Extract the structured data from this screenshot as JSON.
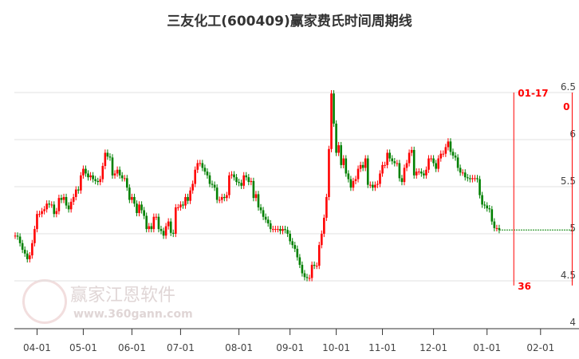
{
  "chart_data": {
    "type": "candlestick",
    "title": "三友化工(600409)赢家费氏时间周期线",
    "ylim": [
      4,
      6.5
    ],
    "yticks": [
      "4",
      "4.5",
      "5",
      "5.5",
      "6",
      "6.5"
    ],
    "grid": true,
    "xticks": [
      {
        "label": "04-01",
        "index": 9
      },
      {
        "label": "05-01",
        "index": 28
      },
      {
        "label": "06-01",
        "index": 48
      },
      {
        "label": "07-01",
        "index": 68
      },
      {
        "label": "08-01",
        "index": 92
      },
      {
        "label": "09-01",
        "index": 113
      },
      {
        "label": "10-01",
        "index": 132
      },
      {
        "label": "11-01",
        "index": 151
      },
      {
        "label": "12-01",
        "index": 172
      },
      {
        "label": "01-01",
        "index": 194
      },
      {
        "label": "02-01",
        "index": 216
      }
    ],
    "closes": [
      4.98,
      4.97,
      4.9,
      4.83,
      4.79,
      4.73,
      4.77,
      4.9,
      5.05,
      5.21,
      5.21,
      5.24,
      5.26,
      5.32,
      5.31,
      5.31,
      5.21,
      5.24,
      5.38,
      5.36,
      5.39,
      5.3,
      5.26,
      5.34,
      5.39,
      5.47,
      5.46,
      5.62,
      5.69,
      5.64,
      5.6,
      5.62,
      5.58,
      5.56,
      5.55,
      5.58,
      5.72,
      5.86,
      5.82,
      5.81,
      5.62,
      5.64,
      5.68,
      5.62,
      5.59,
      5.59,
      5.49,
      5.36,
      5.39,
      5.32,
      5.22,
      5.31,
      5.25,
      5.19,
      5.05,
      5.08,
      5.05,
      5.18,
      5.18,
      5.05,
      5.03,
      4.98,
      5.08,
      5.13,
      5.01,
      5.0,
      5.28,
      5.28,
      5.31,
      5.3,
      5.39,
      5.35,
      5.46,
      5.53,
      5.68,
      5.75,
      5.75,
      5.7,
      5.66,
      5.62,
      5.53,
      5.52,
      5.49,
      5.36,
      5.36,
      5.39,
      5.38,
      5.41,
      5.62,
      5.63,
      5.6,
      5.55,
      5.54,
      5.51,
      5.62,
      5.6,
      5.55,
      5.56,
      5.38,
      5.42,
      5.28,
      5.25,
      5.18,
      5.15,
      5.11,
      5.05,
      5.05,
      5.05,
      5.05,
      5.03,
      5.05,
      5.04,
      5.0,
      4.92,
      4.88,
      4.84,
      4.75,
      4.67,
      4.58,
      4.54,
      4.53,
      4.53,
      4.67,
      4.66,
      4.66,
      4.88,
      5.0,
      5.17,
      5.39,
      5.9,
      6.49,
      6.17,
      5.86,
      5.94,
      5.73,
      5.8,
      5.64,
      5.58,
      5.49,
      5.56,
      5.58,
      5.69,
      5.73,
      5.7,
      5.8,
      5.52,
      5.52,
      5.49,
      5.52,
      5.53,
      5.64,
      5.73,
      5.73,
      5.86,
      5.8,
      5.77,
      5.75,
      5.75,
      5.59,
      5.55,
      5.7,
      5.75,
      5.86,
      5.89,
      5.62,
      5.66,
      5.66,
      5.64,
      5.62,
      5.68,
      5.8,
      5.8,
      5.75,
      5.69,
      5.8,
      5.85,
      5.85,
      5.92,
      5.98,
      5.87,
      5.83,
      5.81,
      5.7,
      5.65,
      5.65,
      5.6,
      5.59,
      5.58,
      5.59,
      5.59,
      5.58,
      5.41,
      5.31,
      5.3,
      5.27,
      5.26,
      5.13,
      5.06,
      5.06,
      5.04
    ],
    "last_close_line": 5.04,
    "annotations": [
      {
        "label": "01-17",
        "count": "36",
        "index": 205
      },
      {
        "label": "0",
        "index": 229
      }
    ],
    "colors": {
      "up": "#ff0000",
      "down": "#008000",
      "grid": "#e0e0e0",
      "marker": "#ff0000"
    }
  },
  "watermark": {
    "logo_text": "江赢恩家",
    "name": "赢家江恩软件",
    "url": "www.360gann.com"
  }
}
